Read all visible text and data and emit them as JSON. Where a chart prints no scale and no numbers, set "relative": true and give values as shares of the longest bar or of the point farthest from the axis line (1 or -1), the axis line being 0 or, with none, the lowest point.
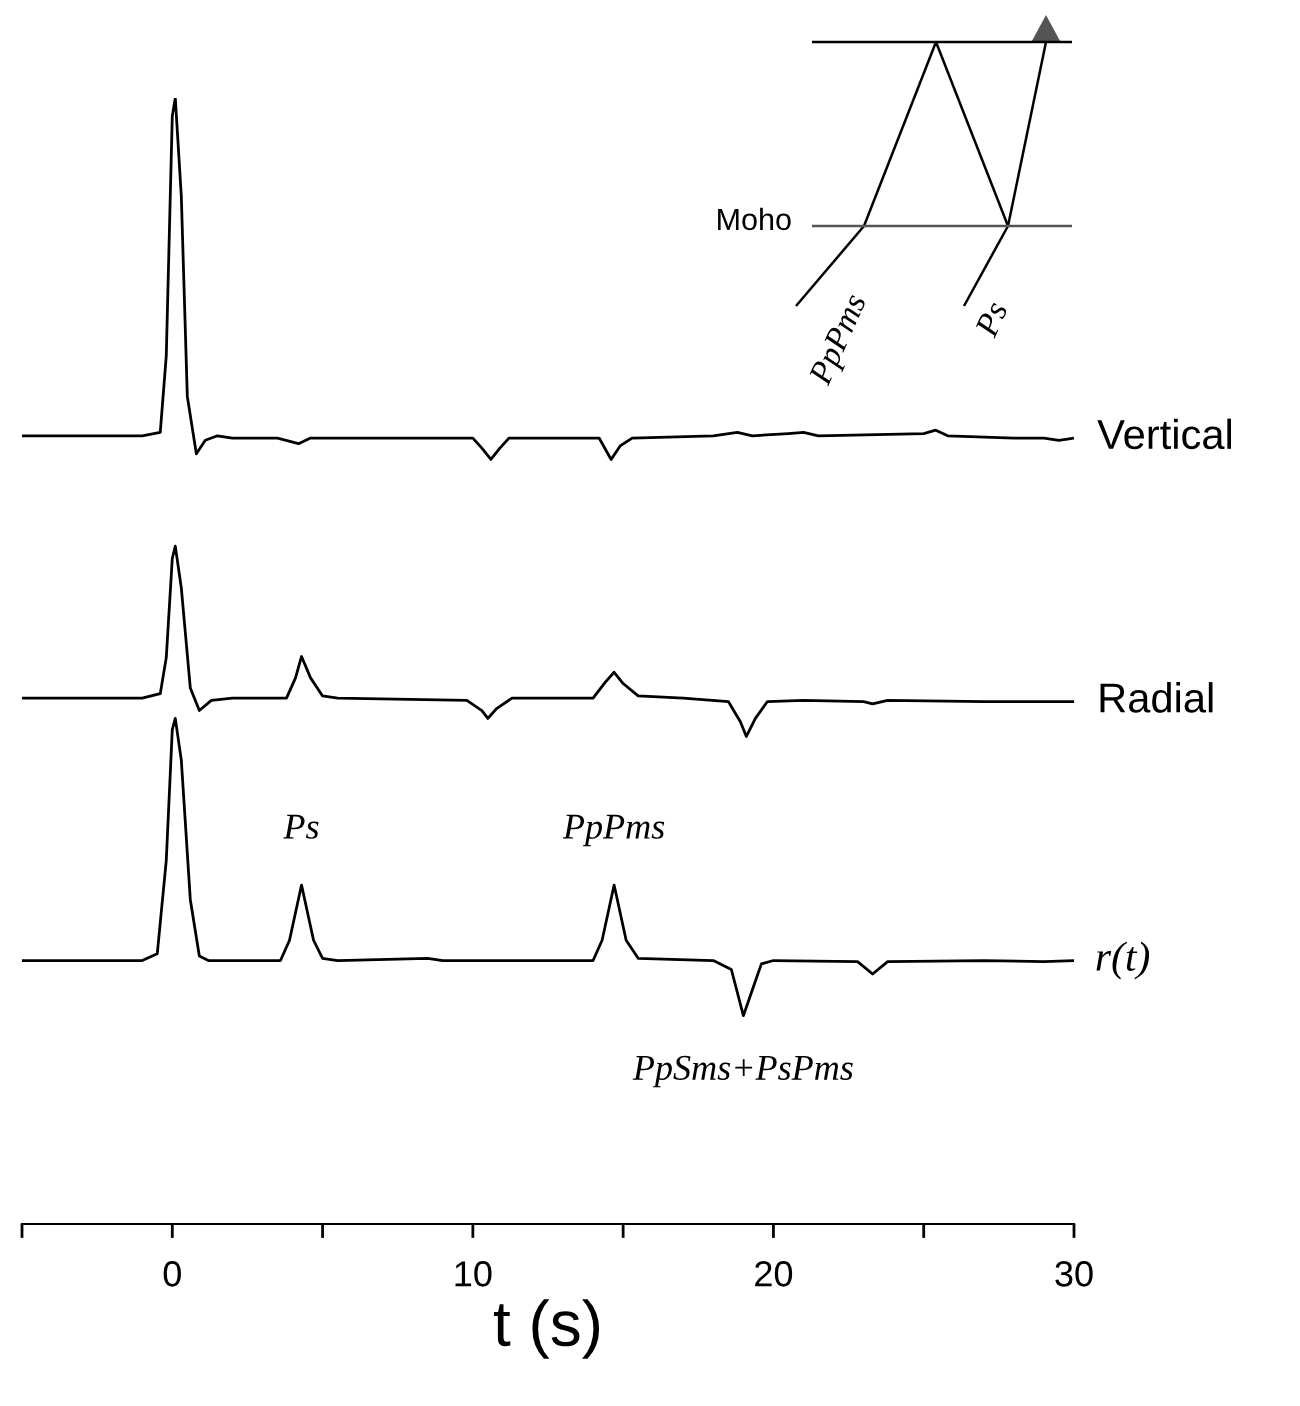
{
  "chart_data": {
    "type": "line",
    "relative": true,
    "xlim": [
      -5,
      30
    ],
    "xlabel": "t (s)",
    "xticks": [
      {
        "value": -5,
        "label": null
      },
      0,
      {
        "value": 5,
        "label": null
      },
      10,
      {
        "value": 15,
        "label": null
      },
      20,
      {
        "value": 25,
        "label": null
      },
      30
    ],
    "annotations": [
      "Moho",
      "PpPms",
      "Ps",
      {
        "text": "Ps",
        "x": 4.3,
        "y": 0.301
      },
      {
        "text": "PpPms",
        "x": 14.7,
        "y": 0.301
      },
      {
        "text": "PpSms+PsPms",
        "x": 19,
        "y": 0.185
      }
    ],
    "series": [
      {
        "name": "Vertical",
        "color": "#000000",
        "x": [
          -5,
          -1,
          -0.4,
          -0.2,
          0,
          0.1,
          0.3,
          0.5,
          0.8,
          1.1,
          1.5,
          2,
          3.5,
          4.2,
          4.6,
          7,
          10,
          10.3,
          10.6,
          10.9,
          11.2,
          13.5,
          14.2,
          14.6,
          14.9,
          15.3,
          18,
          18.8,
          19.3,
          20.5,
          21,
          21.5,
          25,
          25.4,
          25.8,
          28,
          29,
          29.5,
          30
        ],
        "values": [
          0.7,
          0.7,
          0.703,
          0.771,
          0.984,
          1,
          0.913,
          0.735,
          0.684,
          0.696,
          0.7,
          0.698,
          0.698,
          0.693,
          0.698,
          0.698,
          0.698,
          0.689,
          0.679,
          0.689,
          0.698,
          0.698,
          0.698,
          0.679,
          0.691,
          0.698,
          0.7,
          0.703,
          0.7,
          0.702,
          0.703,
          0.7,
          0.702,
          0.705,
          0.7,
          0.698,
          0.698,
          0.696,
          0.698
        ]
      },
      {
        "name": "Radial",
        "color": "#000000",
        "x": [
          -5,
          -1,
          -0.4,
          -0.2,
          0,
          0.1,
          0.3,
          0.6,
          0.9,
          1.3,
          2,
          3.8,
          4.1,
          4.3,
          4.6,
          5,
          5.5,
          9.8,
          10.3,
          10.5,
          10.8,
          11.3,
          14,
          14.4,
          14.7,
          15,
          15.5,
          17,
          18.5,
          18.9,
          19.1,
          19.4,
          19.8,
          21,
          23,
          23.3,
          23.8,
          27,
          30
        ],
        "values": [
          0.467,
          0.467,
          0.471,
          0.503,
          0.591,
          0.602,
          0.565,
          0.476,
          0.456,
          0.465,
          0.467,
          0.467,
          0.485,
          0.504,
          0.485,
          0.469,
          0.467,
          0.465,
          0.456,
          0.449,
          0.458,
          0.467,
          0.467,
          0.481,
          0.49,
          0.48,
          0.469,
          0.467,
          0.464,
          0.446,
          0.433,
          0.449,
          0.464,
          0.465,
          0.464,
          0.462,
          0.465,
          0.464,
          0.464
        ]
      },
      {
        "name": "r(t)",
        "color": "#000000",
        "x": [
          -5,
          -1,
          -0.5,
          -0.2,
          0,
          0.1,
          0.3,
          0.6,
          0.9,
          1.2,
          3.6,
          3.9,
          4.3,
          4.7,
          5,
          5.5,
          8.5,
          9,
          14,
          14.3,
          14.7,
          15.1,
          15.5,
          18,
          18.6,
          19,
          19.3,
          19.6,
          20,
          22.8,
          23.3,
          23.8,
          27,
          29,
          30
        ],
        "values": [
          0.234,
          0.234,
          0.24,
          0.323,
          0.439,
          0.449,
          0.412,
          0.288,
          0.238,
          0.234,
          0.234,
          0.252,
          0.301,
          0.252,
          0.236,
          0.234,
          0.236,
          0.234,
          0.234,
          0.252,
          0.301,
          0.252,
          0.236,
          0.234,
          0.226,
          0.185,
          0.208,
          0.231,
          0.234,
          0.233,
          0.222,
          0.233,
          0.234,
          0.233,
          0.234
        ]
      }
    ]
  }
}
